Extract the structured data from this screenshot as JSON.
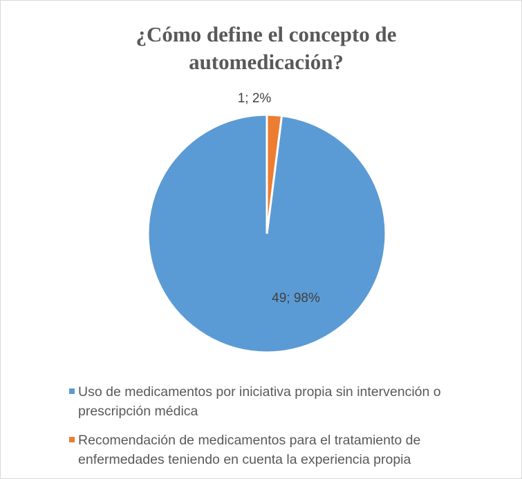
{
  "chart_data": {
    "type": "pie",
    "title": "¿Cómo define el concepto de automedicación?",
    "categories": [
      "Uso de medicamentos por iniciativa propia sin intervención o prescripción médica",
      "Recomendación de medicamentos para el tratamiento de enfermedades teniendo en cuenta la experiencia propia"
    ],
    "values": [
      49,
      1
    ],
    "value_labels": [
      "49; 98%",
      "1; 2%"
    ],
    "colors": [
      "#5b9bd5",
      "#ed7d31"
    ],
    "legend": "bottom"
  }
}
